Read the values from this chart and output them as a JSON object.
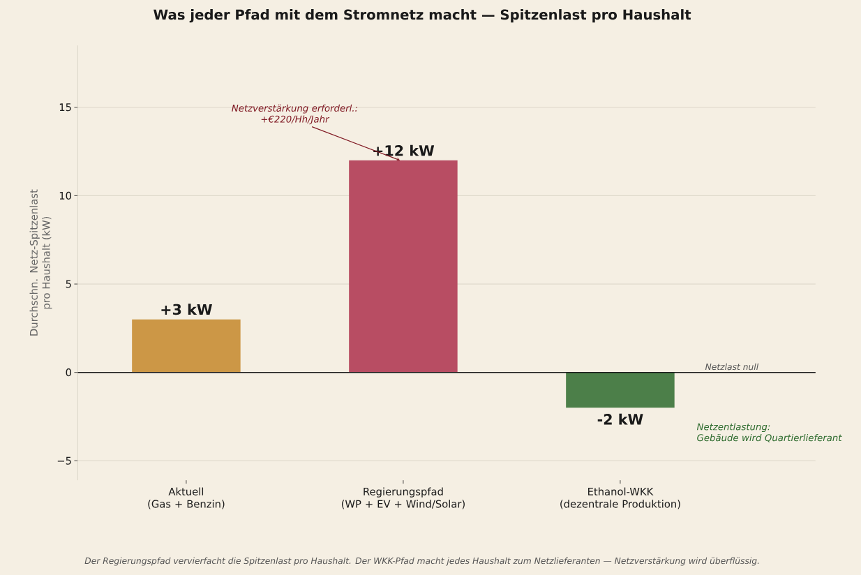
{
  "chart_data": {
    "type": "bar",
    "title": "Was jeder Pfad mit dem Stromnetz macht — Spitzenlast pro Haushalt",
    "ylabel": "Durchschn. Netz-Spitzenlast\npro Haushalt (kW)",
    "categories": [
      "Aktuell\n(Gas + Benzin)",
      "Regierungspfad\n(WP + EV + Wind/Solar)",
      "Ethanol-WKK\n(dezentrale Produktion)"
    ],
    "values": [
      3,
      12,
      -2
    ],
    "colors": [
      "#cc9746",
      "#b84d63",
      "#4c7f49"
    ],
    "value_labels": [
      "+3 kW",
      "+12 kW",
      "-2 kW"
    ],
    "ylim": [
      -6.1,
      18.5
    ],
    "yticks": [
      {
        "value": -5,
        "label": "−5"
      },
      0,
      5,
      10,
      15
    ],
    "grid": "y",
    "ref_lines": [
      {
        "axis": "y",
        "value": 0,
        "label": "Netzlast null",
        "color": "#1a1a1a"
      }
    ],
    "annotations": [
      {
        "text": "Netzverstärkung erforderl.:\n+€220/Hh/Jahr",
        "x": "Regierungspfad\n(WP + EV + Wind/Solar)",
        "y": 12
      },
      "Netzentlastung:\nGebäude wird Quartierlieferant",
      "Der Regierungspfad vervierfacht die Spitzenlast pro Haushalt. Der WKK-Pfad macht jedes Haushalt zum Netzlieferanten — Netzverstärkung wird überflüssig."
    ]
  }
}
